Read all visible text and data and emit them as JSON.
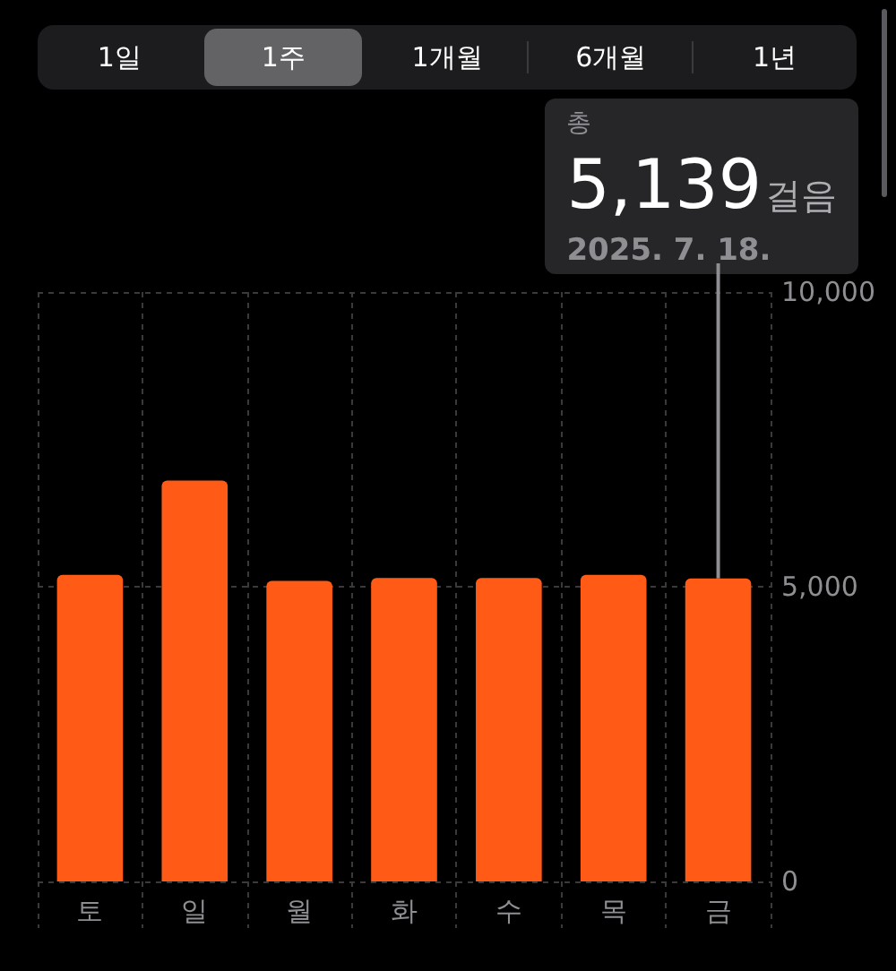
{
  "chart_data": {
    "type": "bar",
    "categories": [
      "토",
      "일",
      "월",
      "화",
      "수",
      "목",
      "금"
    ],
    "values": [
      5200,
      6800,
      5100,
      5150,
      5150,
      5200,
      5139
    ],
    "color": "#ff5b16",
    "ylim": [
      0,
      10000
    ],
    "yticks": [
      0,
      {
        "value": 5000,
        "label": "5,000"
      },
      {
        "value": 10000,
        "label": "10,000"
      }
    ],
    "grid": true,
    "annotations": [
      "1일",
      "1주",
      "1개월",
      "6개월",
      "1년",
      {
        "text": "총\n5,139걸음\n2025. 7. 18.",
        "x": "금",
        "y": 5139
      }
    ]
  }
}
